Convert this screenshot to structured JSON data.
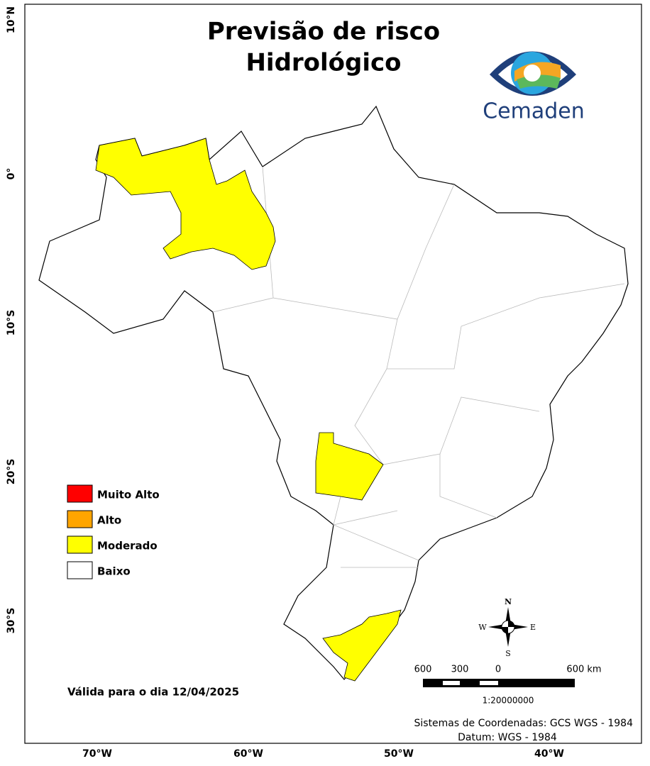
{
  "title": [
    "Previsão de risco",
    "Hidrológico"
  ],
  "logo_text": "Cemaden",
  "legend": [
    {
      "label": "Muito Alto",
      "color": "#ff0000"
    },
    {
      "label": "Alto",
      "color": "#ffa500"
    },
    {
      "label": "Moderado",
      "color": "#ffff00"
    },
    {
      "label": "Baixo",
      "color": "#ffffff"
    }
  ],
  "validity": "Válida para o dia 12/04/2025",
  "scale_bar": {
    "labels": [
      "600",
      "300",
      "0",
      "600 km"
    ],
    "ratio": "1:20000000"
  },
  "compass": {
    "north": "N",
    "east": "E",
    "south": "S",
    "west": "W"
  },
  "x_axis_labels": [
    "70°W",
    "60°W",
    "50°W",
    "40°W"
  ],
  "y_axis_labels": [
    "10°N",
    "0°",
    "10°S",
    "20°S",
    "30°S"
  ],
  "credits": [
    "Sistemas de Coordenadas: GCS WGS - 1984",
    "Datum: WGS - 1984"
  ]
}
